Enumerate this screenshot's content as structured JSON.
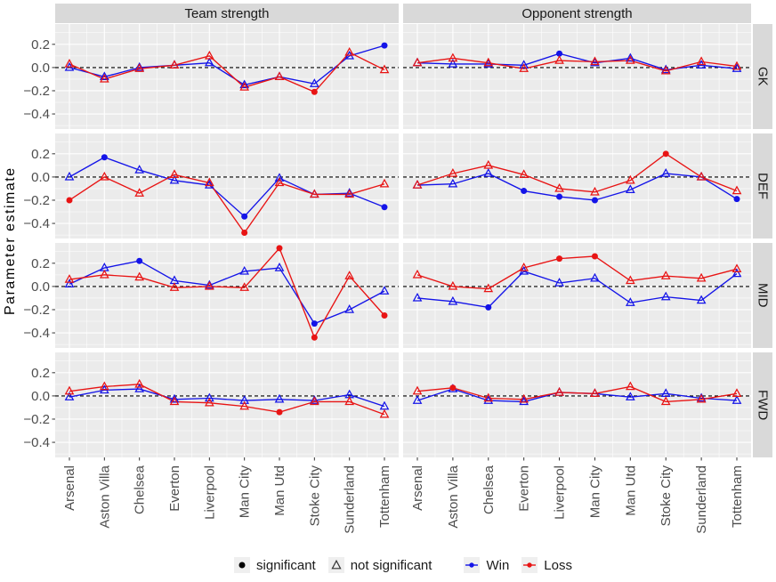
{
  "chart_data": {
    "type": "line",
    "facet_cols": [
      "Team strength",
      "Opponent strength"
    ],
    "facet_rows": [
      "GK",
      "DEF",
      "MID",
      "FWD"
    ],
    "categories": [
      "Arsenal",
      "Aston Villa",
      "Chelsea",
      "Everton",
      "Liverpool",
      "Man City",
      "Man Utd",
      "Stoke City",
      "Sunderland",
      "Tottenham"
    ],
    "ylabel": "Parameter estimate",
    "ytick_labels": [
      "0.2",
      "0.0",
      "−0.2",
      "−0.4"
    ],
    "ytick_values": [
      0.2,
      0.0,
      -0.2,
      -0.4
    ],
    "yminor_values": [
      0.3,
      0.1,
      -0.1,
      -0.3,
      -0.5
    ],
    "ylim": [
      -0.53,
      0.375
    ],
    "grid": "white-on-grey",
    "zero_line": "black-dashed",
    "colors": {
      "win": "#1414E8",
      "loss": "#E81414",
      "panel_bg": "#EBEBEB",
      "strip_bg": "#D9D9D9",
      "grid": "#FFFFFF",
      "axis_text": "#4D4D4D",
      "tick_mark": "#333333"
    },
    "panels": [
      {
        "row": "GK",
        "col": "Team strength",
        "win": [
          0.0,
          -0.08,
          0.0,
          0.02,
          0.04,
          -0.15,
          -0.08,
          -0.14,
          0.1,
          0.19
        ],
        "win_significant": [
          false,
          false,
          false,
          false,
          false,
          false,
          false,
          false,
          false,
          true
        ],
        "loss": [
          0.03,
          -0.1,
          -0.01,
          0.02,
          0.1,
          -0.17,
          -0.08,
          -0.21,
          0.13,
          -0.02
        ],
        "loss_significant": [
          false,
          false,
          false,
          false,
          false,
          false,
          false,
          true,
          false,
          false
        ]
      },
      {
        "row": "GK",
        "col": "Opponent strength",
        "win": [
          0.04,
          0.03,
          0.03,
          0.02,
          0.12,
          0.04,
          0.08,
          -0.02,
          0.02,
          -0.01
        ],
        "win_significant": [
          false,
          false,
          false,
          false,
          true,
          false,
          false,
          false,
          false,
          false
        ],
        "loss": [
          0.04,
          0.08,
          0.04,
          -0.01,
          0.06,
          0.05,
          0.06,
          -0.03,
          0.05,
          0.01
        ],
        "loss_significant": [
          false,
          false,
          false,
          false,
          false,
          false,
          false,
          false,
          false,
          false
        ]
      },
      {
        "row": "DEF",
        "col": "Team strength",
        "win": [
          0.0,
          0.17,
          0.06,
          -0.03,
          -0.07,
          -0.34,
          -0.01,
          -0.15,
          -0.14,
          -0.26
        ],
        "win_significant": [
          false,
          true,
          false,
          false,
          false,
          true,
          false,
          false,
          false,
          true
        ],
        "loss": [
          -0.2,
          0.0,
          -0.14,
          0.02,
          -0.05,
          -0.48,
          -0.05,
          -0.15,
          -0.15,
          -0.06
        ],
        "loss_significant": [
          true,
          false,
          false,
          false,
          false,
          true,
          false,
          false,
          false,
          false
        ]
      },
      {
        "row": "DEF",
        "col": "Opponent strength",
        "win": [
          -0.07,
          -0.06,
          0.03,
          -0.12,
          -0.17,
          -0.2,
          -0.11,
          0.03,
          0.0,
          -0.19
        ],
        "win_significant": [
          false,
          false,
          false,
          true,
          true,
          true,
          false,
          false,
          false,
          true
        ],
        "loss": [
          -0.07,
          0.03,
          0.1,
          0.02,
          -0.1,
          -0.13,
          -0.03,
          0.2,
          0.0,
          -0.12
        ],
        "loss_significant": [
          false,
          false,
          false,
          false,
          false,
          false,
          false,
          true,
          false,
          false
        ]
      },
      {
        "row": "MID",
        "col": "Team strength",
        "win": [
          0.02,
          0.16,
          0.22,
          0.05,
          0.01,
          0.13,
          0.16,
          -0.32,
          -0.2,
          -0.04
        ],
        "win_significant": [
          false,
          false,
          true,
          false,
          false,
          false,
          false,
          true,
          false,
          false
        ],
        "loss": [
          0.06,
          0.1,
          0.08,
          -0.01,
          0.0,
          -0.01,
          0.33,
          -0.44,
          0.09,
          -0.25
        ],
        "loss_significant": [
          false,
          false,
          false,
          false,
          false,
          false,
          true,
          true,
          false,
          true
        ]
      },
      {
        "row": "MID",
        "col": "Opponent strength",
        "win": [
          -0.1,
          -0.13,
          -0.18,
          0.13,
          0.03,
          0.07,
          -0.14,
          -0.09,
          -0.12,
          0.11
        ],
        "win_significant": [
          false,
          false,
          true,
          false,
          false,
          false,
          false,
          false,
          false,
          false
        ],
        "loss": [
          0.1,
          0.0,
          -0.02,
          0.16,
          0.24,
          0.26,
          0.05,
          0.09,
          0.07,
          0.15
        ],
        "loss_significant": [
          false,
          false,
          false,
          false,
          true,
          true,
          false,
          false,
          false,
          false
        ]
      },
      {
        "row": "FWD",
        "col": "Team strength",
        "win": [
          -0.01,
          0.05,
          0.06,
          -0.03,
          -0.02,
          -0.04,
          -0.03,
          -0.04,
          0.01,
          -0.09
        ],
        "win_significant": [
          false,
          false,
          false,
          false,
          false,
          false,
          false,
          false,
          false,
          false
        ],
        "loss": [
          0.04,
          0.08,
          0.1,
          -0.05,
          -0.06,
          -0.09,
          -0.14,
          -0.05,
          -0.05,
          -0.16
        ],
        "loss_significant": [
          false,
          false,
          false,
          false,
          false,
          false,
          true,
          false,
          false,
          false
        ]
      },
      {
        "row": "FWD",
        "col": "Opponent strength",
        "win": [
          -0.04,
          0.06,
          -0.04,
          -0.05,
          0.03,
          0.02,
          -0.01,
          0.02,
          -0.02,
          -0.04
        ],
        "win_significant": [
          false,
          false,
          false,
          false,
          false,
          false,
          false,
          false,
          false,
          false
        ],
        "loss": [
          0.04,
          0.07,
          -0.02,
          -0.03,
          0.03,
          0.02,
          0.08,
          -0.05,
          -0.03,
          0.02
        ],
        "loss_significant": [
          false,
          true,
          false,
          false,
          false,
          false,
          false,
          false,
          false,
          false
        ]
      }
    ]
  },
  "legend": {
    "items": [
      {
        "label": "significant",
        "marker": "filled-circle",
        "color": "#000000"
      },
      {
        "label": "not significant",
        "marker": "open-triangle",
        "color": "#333333"
      },
      {
        "label": "Win",
        "marker": "line-dot",
        "color": "#1414E8"
      },
      {
        "label": "Loss",
        "marker": "line-dot",
        "color": "#E81414"
      }
    ]
  }
}
